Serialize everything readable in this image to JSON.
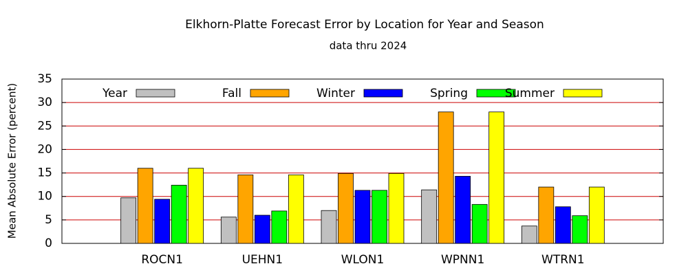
{
  "chart_data": {
    "type": "bar",
    "title": "Elkhorn-Platte Forecast Error by Location for Year and Season",
    "subtitle": "data thru 2024",
    "y_label": "Mean Absolute Error (percent)",
    "categories": [
      "ROCN1",
      "UEHN1",
      "WLON1",
      "WPNN1",
      "WTRN1"
    ],
    "series": [
      {
        "name": "Year",
        "color": "#c0c0c0",
        "values": [
          9.7,
          5.6,
          7.0,
          11.4,
          3.7
        ]
      },
      {
        "name": "Fall",
        "color": "#ffa500",
        "values": [
          16.0,
          14.6,
          14.9,
          28.0,
          12.0
        ]
      },
      {
        "name": "Winter",
        "color": "#0000ff",
        "values": [
          9.4,
          6.0,
          11.3,
          14.3,
          7.8
        ]
      },
      {
        "name": "Spring",
        "color": "#00ff00",
        "values": [
          12.4,
          6.9,
          11.3,
          8.3,
          5.9
        ]
      },
      {
        "name": "Summer",
        "color": "#ffff00",
        "values": [
          16.0,
          14.6,
          14.9,
          28.0,
          12.0
        ]
      }
    ],
    "ylim": [
      0,
      35
    ],
    "yticks": [
      0,
      5,
      10,
      15,
      20,
      25,
      30,
      35
    ],
    "grid": true,
    "grid_color": "#cc0000",
    "legend": "top"
  }
}
